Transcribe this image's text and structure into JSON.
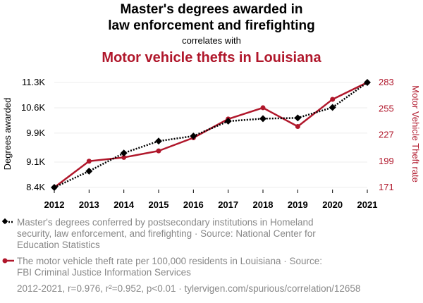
{
  "header": {
    "title_line1": "Master's degrees awarded in",
    "title_line2": "law enforcement and firefighting",
    "correlates": "correlates with",
    "title2": "Motor vehicle thefts in Louisiana"
  },
  "colors": {
    "series1": "#000000",
    "series2": "#b0172b",
    "muted": "#888888"
  },
  "chart_data": {
    "type": "line",
    "x": [
      2012,
      2013,
      2014,
      2015,
      2016,
      2017,
      2018,
      2019,
      2020,
      2021
    ],
    "series": [
      {
        "name": "Master's degrees conferred by postsecondary institutions in Homeland security, law enforcement, and firefighting",
        "axis": "left",
        "style": "dotted",
        "marker": "diamond",
        "values": [
          8400,
          8850,
          9350,
          9680,
          9820,
          10230,
          10300,
          10320,
          10610,
          11300
        ]
      },
      {
        "name": "The motor vehicle theft rate per 100,000 residents in Louisiana",
        "axis": "right",
        "style": "solid",
        "marker": "circle",
        "values": [
          171,
          199,
          203,
          210,
          224,
          244,
          256,
          236,
          265,
          283
        ]
      }
    ],
    "y_left": {
      "label": "Degrees awarded",
      "ticks": [
        8400,
        9100,
        9900,
        10600,
        11300
      ],
      "tick_labels": [
        "8.4K",
        "9.1K",
        "9.9K",
        "10.6K",
        "11.3K"
      ],
      "range": [
        8400,
        11300
      ]
    },
    "y_right": {
      "label": "Motor Vehicle Theft rate",
      "ticks": [
        171,
        199,
        227,
        255,
        283
      ],
      "tick_labels": [
        "171",
        "199",
        "227",
        "255",
        "283"
      ],
      "range": [
        171,
        283
      ]
    },
    "x_tick_labels": [
      "2012",
      "2013",
      "2014",
      "2015",
      "2016",
      "2017",
      "2018",
      "2019",
      "2020",
      "2021"
    ],
    "grid": true
  },
  "legend": {
    "item1_line1": "Master's degrees conferred by postsecondary institutions in Homeland",
    "item1_line2": "security, law enforcement, and firefighting · Source: National Center for",
    "item1_line3": "Education Statistics",
    "item2_line1": "The motor vehicle theft rate per 100,000 residents in Louisiana · Source:",
    "item2_line2": "FBI Criminal Justice Information Services"
  },
  "footer": {
    "stats": "2012-2021, r=0.976, r²=0.952, p<0.01 · tylervigen.com/spurious/correlation/12658"
  }
}
